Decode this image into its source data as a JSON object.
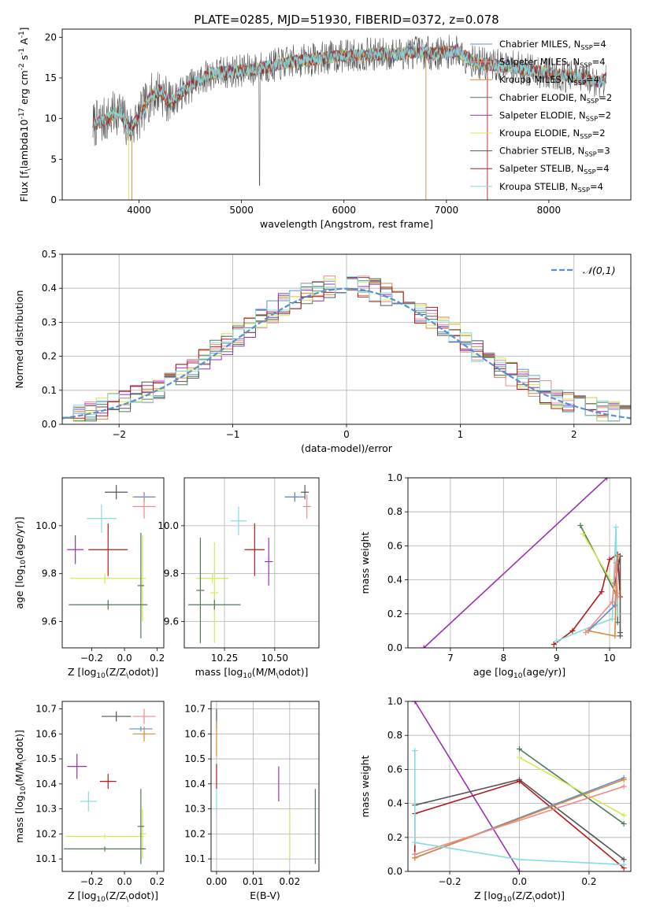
{
  "chart_data": [
    {
      "id": "spectrum",
      "type": "line",
      "title": "PLATE=0285, MJD=51930, FIBERID=0372, z=0.078",
      "xlabel": "wavelength [Angstrom, rest frame]",
      "ylabel": "Flux [f$_\\lambda$10$^{-17}$ erg cm$^{-2}$ s$^{-1}$ A$^{-1}$]",
      "xlim": [
        3250,
        8800
      ],
      "ylim": [
        0,
        21
      ],
      "xticks": [
        4000,
        5000,
        6000,
        7000,
        8000
      ],
      "yticks": [
        0,
        5,
        10,
        15,
        20
      ],
      "legend_location": "right",
      "data_envelope": {
        "x": [
          3550,
          3700,
          3800,
          3900,
          4000,
          4100,
          4200,
          4300,
          4500,
          4700,
          4900,
          5100,
          5300,
          5500,
          5700,
          5900,
          6100,
          6300,
          6500,
          6700,
          6900,
          7100,
          7300,
          7500,
          7700,
          7900,
          8100,
          8300,
          8500,
          8560
        ],
        "y": [
          9.2,
          10.0,
          11.0,
          8.8,
          10.0,
          12.5,
          13.5,
          12.0,
          14.0,
          15.5,
          15.8,
          16.0,
          16.5,
          17.0,
          17.3,
          17.6,
          17.8,
          17.9,
          17.9,
          18.2,
          18.0,
          18.3,
          16.8,
          16.5,
          16.2,
          15.8,
          15.4,
          15.0,
          14.5,
          15.0
        ]
      },
      "series": [
        {
          "name": "Chabrier MILES, N$_{SSP}$=4",
          "color": "#5a8fd1"
        },
        {
          "name": "Salpeter MILES, N$_{SSP}$=4",
          "color": "#f08a8a"
        },
        {
          "name": "Kroupa MILES, N$_{SSP}$=4",
          "color": "#d9883a"
        },
        {
          "name": "Chabrier ELODIE, N$_{SSP}$=2",
          "color": "#4e7a57"
        },
        {
          "name": "Salpeter ELODIE, N$_{SSP}$=2",
          "color": "#9b30b5"
        },
        {
          "name": "Kroupa ELODIE, N$_{SSP}$=2",
          "color": "#d4e854"
        },
        {
          "name": "Chabrier STELIB, N$_{SSP}$=3",
          "color": "#555555"
        },
        {
          "name": "Salpeter STELIB, N$_{SSP}$=4",
          "color": "#b31b1b"
        },
        {
          "name": "Kroupa STELIB, N$_{SSP}$=4",
          "color": "#86dbe0"
        }
      ]
    },
    {
      "id": "residuals",
      "type": "line",
      "xlabel": "(data-model)/error",
      "ylabel": "Normed distribution",
      "xlim": [
        -2.5,
        2.5
      ],
      "ylim": [
        0,
        0.5
      ],
      "xticks": [
        -2,
        -1,
        0,
        1,
        2
      ],
      "yticks": [
        0.0,
        0.1,
        0.2,
        0.3,
        0.4,
        0.5
      ],
      "grid": true,
      "legend_location": "upper right",
      "reference_curve": {
        "name": "$\\mathcal{N}(0,1)$",
        "color": "#5a8fd1",
        "dashed": true
      },
      "histogram_envelope": {
        "x": [
          -2.5,
          -2.3,
          -2.1,
          -1.9,
          -1.7,
          -1.5,
          -1.3,
          -1.1,
          -0.9,
          -0.7,
          -0.5,
          -0.3,
          -0.1,
          0.1,
          0.3,
          0.5,
          0.7,
          0.9,
          1.1,
          1.3,
          1.5,
          1.7,
          1.9,
          2.1,
          2.3,
          2.5
        ],
        "y": [
          0.02,
          0.04,
          0.04,
          0.07,
          0.1,
          0.14,
          0.18,
          0.22,
          0.27,
          0.33,
          0.36,
          0.39,
          0.41,
          0.41,
          0.39,
          0.36,
          0.33,
          0.27,
          0.22,
          0.17,
          0.14,
          0.1,
          0.07,
          0.05,
          0.03,
          0.02
        ]
      }
    },
    {
      "id": "age_vs_Z",
      "type": "scatter",
      "xlabel": "Z [log$_{10}$($Z/Z_\\odot$)]",
      "ylabel": "age  [log$_{10}$($age/yr$)]",
      "xlim": [
        -0.38,
        0.24
      ],
      "ylim": [
        9.49,
        10.2
      ],
      "xticks": [
        -0.2,
        0.0,
        0.2
      ],
      "yticks": [
        9.6,
        9.8,
        10.0
      ],
      "grid": false,
      "points": [
        {
          "x": -0.05,
          "xerr": 0.07,
          "y": 10.14,
          "yerr": 0.03,
          "color": "#555555"
        },
        {
          "x": 0.12,
          "xerr": 0.07,
          "y": 10.12,
          "yerr": 0.02,
          "color": "#d9883a"
        },
        {
          "x": 0.12,
          "xerr": 0.06,
          "y": 10.12,
          "yerr": 0.02,
          "color": "#5a8fd1"
        },
        {
          "x": 0.12,
          "xerr": 0.07,
          "y": 10.08,
          "yerr": 0.05,
          "color": "#f08a8a"
        },
        {
          "x": -0.14,
          "xerr": 0.09,
          "y": 10.03,
          "yerr": 0.06,
          "color": "#86dbe0"
        },
        {
          "x": -0.1,
          "xerr": 0.12,
          "y": 9.9,
          "yerr": 0.11,
          "color": "#b31b1b"
        },
        {
          "x": -0.3,
          "xerr": 0.05,
          "y": 9.9,
          "yerr": 0.06,
          "color": "#9b30b5"
        },
        {
          "x": -0.12,
          "xerr": 0.21,
          "y": 9.78,
          "yerr": 0.02,
          "color": "#d4e854"
        },
        {
          "x": 0.11,
          "xerr": 0.02,
          "y": 9.78,
          "yerr": 0.18,
          "color": "#d4e854"
        },
        {
          "x": -0.1,
          "xerr": 0.24,
          "y": 9.67,
          "yerr": 0.02,
          "color": "#4e7a57"
        },
        {
          "x": 0.1,
          "xerr": 0.02,
          "y": 9.75,
          "yerr": 0.22,
          "color": "#4e7a57"
        }
      ]
    },
    {
      "id": "age_vs_mass",
      "type": "scatter",
      "xlabel": "mass [log$_{10}$($M/M_\\odot$)]",
      "ylabel": "",
      "xlim": [
        10.05,
        10.72
      ],
      "ylim": [
        9.49,
        10.2
      ],
      "xticks": [
        10.25,
        10.5
      ],
      "yticks": [
        9.6,
        9.8,
        10.0
      ],
      "grid": true,
      "points": [
        {
          "x": 10.65,
          "xerr": 0.02,
          "y": 10.14,
          "yerr": 0.03,
          "color": "#555555"
        },
        {
          "x": 10.6,
          "xerr": 0.05,
          "y": 10.12,
          "yerr": 0.02,
          "color": "#d9883a"
        },
        {
          "x": 10.6,
          "xerr": 0.05,
          "y": 10.12,
          "yerr": 0.02,
          "color": "#5a8fd1"
        },
        {
          "x": 10.66,
          "xerr": 0.02,
          "y": 10.08,
          "yerr": 0.05,
          "color": "#f08a8a"
        },
        {
          "x": 10.32,
          "xerr": 0.04,
          "y": 10.02,
          "yerr": 0.06,
          "color": "#86dbe0"
        },
        {
          "x": 10.4,
          "xerr": 0.05,
          "y": 9.9,
          "yerr": 0.11,
          "color": "#b31b1b"
        },
        {
          "x": 10.47,
          "xerr": 0.02,
          "y": 9.85,
          "yerr": 0.1,
          "color": "#9b30b5"
        },
        {
          "x": 10.19,
          "xerr": 0.08,
          "y": 9.78,
          "yerr": 0.02,
          "color": "#d4e854"
        },
        {
          "x": 10.2,
          "xerr": 0.02,
          "y": 9.72,
          "yerr": 0.21,
          "color": "#d4e854"
        },
        {
          "x": 10.2,
          "xerr": 0.13,
          "y": 9.67,
          "yerr": 0.02,
          "color": "#4e7a57"
        },
        {
          "x": 10.13,
          "xerr": 0.02,
          "y": 9.73,
          "yerr": 0.22,
          "color": "#4e7a57"
        }
      ]
    },
    {
      "id": "weight_vs_age",
      "type": "line",
      "xlabel": "age  [log$_{10}$($age/yr$)]",
      "ylabel": "mass weight",
      "xlim": [
        6.2,
        10.4
      ],
      "ylim": [
        0.0,
        1.0
      ],
      "xticks": [
        7,
        8,
        9,
        10
      ],
      "yticks": [
        0.0,
        0.2,
        0.4,
        0.6,
        0.8,
        1.0
      ],
      "grid": true,
      "series": [
        {
          "color": "#9b30b5",
          "x": [
            6.5,
            9.95
          ],
          "y": [
            0.0,
            1.0
          ]
        },
        {
          "color": "#b31b1b",
          "x": [
            8.95,
            9.3,
            9.85,
            10.0,
            10.15,
            10.2
          ],
          "y": [
            0.02,
            0.1,
            0.33,
            0.52,
            0.55,
            0.3
          ]
        },
        {
          "color": "#4e7a57",
          "x": [
            9.45,
            10.15,
            10.15
          ],
          "y": [
            0.72,
            0.3,
            0.15
          ]
        },
        {
          "color": "#d4e854",
          "x": [
            9.5,
            10.15,
            10.15
          ],
          "y": [
            0.67,
            0.33,
            0.2
          ]
        },
        {
          "color": "#555555",
          "x": [
            10.1,
            10.2,
            10.2,
            10.2
          ],
          "y": [
            0.38,
            0.54,
            0.09,
            0.07
          ]
        },
        {
          "color": "#86dbe0",
          "x": [
            9.0,
            9.7,
            10.05,
            10.12,
            10.15
          ],
          "y": [
            0.04,
            0.13,
            0.17,
            0.71,
            0.2
          ]
        },
        {
          "color": "#5a8fd1",
          "x": [
            9.6,
            10.1,
            10.12,
            10.15
          ],
          "y": [
            0.1,
            0.25,
            0.32,
            0.54
          ]
        },
        {
          "color": "#d9883a",
          "x": [
            9.6,
            10.1,
            10.12,
            10.15
          ],
          "y": [
            0.1,
            0.07,
            0.32,
            0.54
          ]
        },
        {
          "color": "#f08a8a",
          "x": [
            9.55,
            10.05,
            10.12,
            10.15
          ],
          "y": [
            0.09,
            0.27,
            0.5,
            0.3
          ]
        }
      ]
    },
    {
      "id": "mass_vs_Z",
      "type": "scatter",
      "xlabel": "Z [log$_{10}$($Z/Z_\\odot$)]",
      "ylabel": "mass [log$_{10}$($M/M_\\odot$)]",
      "xlim": [
        -0.38,
        0.24
      ],
      "ylim": [
        10.05,
        10.73
      ],
      "xticks": [
        -0.2,
        0.0,
        0.2
      ],
      "yticks": [
        10.1,
        10.2,
        10.3,
        10.4,
        10.5,
        10.6,
        10.7
      ],
      "grid": false,
      "points": [
        {
          "x": -0.05,
          "xerr": 0.09,
          "y": 10.67,
          "yerr": 0.02,
          "color": "#555555"
        },
        {
          "x": 0.12,
          "xerr": 0.07,
          "y": 10.67,
          "yerr": 0.03,
          "color": "#f08a8a"
        },
        {
          "x": 0.1,
          "xerr": 0.07,
          "y": 10.62,
          "yerr": 0.01,
          "color": "#5a8fd1"
        },
        {
          "x": 0.12,
          "xerr": 0.07,
          "y": 10.6,
          "yerr": 0.03,
          "color": "#d9883a"
        },
        {
          "x": -0.29,
          "xerr": 0.06,
          "y": 10.47,
          "yerr": 0.05,
          "color": "#9b30b5"
        },
        {
          "x": -0.1,
          "xerr": 0.05,
          "y": 10.41,
          "yerr": 0.03,
          "color": "#b31b1b"
        },
        {
          "x": -0.22,
          "xerr": 0.05,
          "y": 10.33,
          "yerr": 0.04,
          "color": "#86dbe0"
        },
        {
          "x": -0.12,
          "xerr": 0.24,
          "y": 10.19,
          "yerr": 0.01,
          "color": "#d4e854"
        },
        {
          "x": 0.11,
          "xerr": 0.02,
          "y": 10.2,
          "yerr": 0.1,
          "color": "#d4e854"
        },
        {
          "x": -0.12,
          "xerr": 0.25,
          "y": 10.14,
          "yerr": 0.01,
          "color": "#4e7a57"
        },
        {
          "x": 0.1,
          "xerr": 0.02,
          "y": 10.23,
          "yerr": 0.15,
          "color": "#4e7a57"
        }
      ]
    },
    {
      "id": "mass_vs_ebv",
      "type": "scatter",
      "xlabel": "E(B-V)",
      "ylabel": "",
      "xlim": [
        -0.0015,
        0.028
      ],
      "ylim": [
        10.05,
        10.73
      ],
      "xticks": [
        0.0,
        0.01,
        0.02
      ],
      "yticks": [
        10.1,
        10.2,
        10.3,
        10.4,
        10.5,
        10.6,
        10.7
      ],
      "grid": true,
      "points": [
        {
          "x": 0.0,
          "xerr": 0,
          "y": 10.66,
          "yerr": 0.04,
          "color": "#555555"
        },
        {
          "x": 0.0,
          "xerr": 0,
          "y": 10.58,
          "yerr": 0.07,
          "color": "#d9883a"
        },
        {
          "x": 0.0,
          "xerr": 0,
          "y": 10.43,
          "yerr": 0.05,
          "color": "#b31b1b"
        },
        {
          "x": 0.0,
          "xerr": 0,
          "y": 10.33,
          "yerr": 0.05,
          "color": "#86dbe0"
        },
        {
          "x": 0.017,
          "xerr": 0,
          "y": 10.4,
          "yerr": 0.07,
          "color": "#9b30b5"
        },
        {
          "x": 0.02,
          "xerr": 0,
          "y": 10.2,
          "yerr": 0.1,
          "color": "#d4e854"
        },
        {
          "x": 0.027,
          "xerr": 0,
          "y": 10.23,
          "yerr": 0.15,
          "color": "#4e7a57"
        }
      ]
    },
    {
      "id": "weight_vs_Z",
      "type": "line",
      "xlabel": "Z [log$_{10}$($Z/Z_\\odot$)]",
      "ylabel": "mass weight",
      "xlim": [
        -0.32,
        0.32
      ],
      "ylim": [
        0.0,
        1.0
      ],
      "xticks": [
        -0.2,
        0.0,
        0.2
      ],
      "yticks": [
        0.0,
        0.2,
        0.4,
        0.6,
        0.8,
        1.0
      ],
      "grid": true,
      "series": [
        {
          "color": "#9b30b5",
          "x": [
            -0.3,
            0.0
          ],
          "y": [
            1.0,
            0.0
          ]
        },
        {
          "color": "#4e7a57",
          "x": [
            0.0,
            0.3
          ],
          "y": [
            0.72,
            0.28
          ]
        },
        {
          "color": "#d4e854",
          "x": [
            0.0,
            0.3
          ],
          "y": [
            0.67,
            0.33
          ]
        },
        {
          "color": "#555555",
          "x": [
            -0.3,
            0.0,
            0.3
          ],
          "y": [
            0.39,
            0.54,
            0.07
          ]
        },
        {
          "color": "#b31b1b",
          "x": [
            -0.3,
            -0.3,
            0.0,
            0.3
          ],
          "y": [
            0.1,
            0.34,
            0.53,
            0.02
          ]
        },
        {
          "color": "#5a8fd1",
          "x": [
            -0.3,
            0.3
          ],
          "y": [
            0.08,
            0.55
          ]
        },
        {
          "color": "#d9883a",
          "x": [
            -0.3,
            0.3
          ],
          "y": [
            0.08,
            0.54
          ]
        },
        {
          "color": "#f08a8a",
          "x": [
            -0.3,
            0.3
          ],
          "y": [
            0.1,
            0.5
          ]
        },
        {
          "color": "#86dbe0",
          "x": [
            -0.3,
            -0.3,
            0.0,
            0.3
          ],
          "y": [
            0.71,
            0.17,
            0.07,
            0.04
          ]
        }
      ]
    }
  ]
}
